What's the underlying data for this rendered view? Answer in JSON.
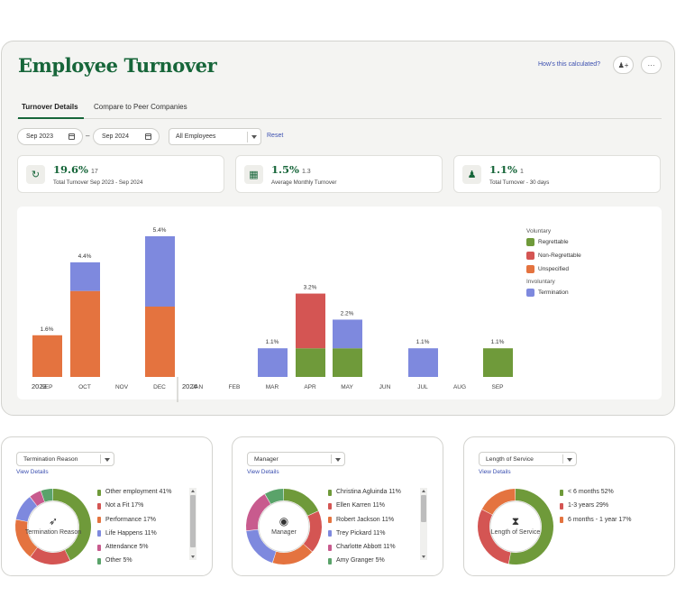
{
  "header": {
    "title": "Employee Turnover",
    "help_link": "How's this calculated?",
    "user_button_icon": "add-user-icon",
    "more_button_icon": "more-icon",
    "more_glyph": "···",
    "user_glyph": "♟+"
  },
  "tabs": [
    {
      "label": "Turnover Details",
      "active": true
    },
    {
      "label": "Compare to Peer Companies",
      "active": false
    }
  ],
  "filters": {
    "start_date": "Sep 2023",
    "end_date": "Sep 2024",
    "separator": "–",
    "employee_filter": "All Employees",
    "reset_label": "Reset"
  },
  "stats": [
    {
      "icon": "refresh-icon",
      "glyph": "↻",
      "value": "19.6%",
      "count": "17",
      "label": "Total Turnover Sep 2023 - Sep 2024"
    },
    {
      "icon": "calendar-icon",
      "glyph": "▦",
      "value": "1.5%",
      "count": "1.3",
      "label": "Average Monthly Turnover"
    },
    {
      "icon": "person-minus-icon",
      "glyph": "♟",
      "value": "1.1%",
      "count": "1",
      "label": "Total Turnover - 30 days"
    }
  ],
  "colors": {
    "regrettable": "#6f9a3a",
    "non_regrettable": "#d45553",
    "unspecified": "#e4733f",
    "termination": "#7e89de",
    "brand": "#17663a"
  },
  "chart_data": {
    "type": "bar",
    "stacked": true,
    "year_labels": [
      "2023",
      "2024"
    ],
    "categories": [
      "SEP",
      "OCT",
      "NOV",
      "DEC",
      "JAN",
      "FEB",
      "MAR",
      "APR",
      "MAY",
      "JUN",
      "JUL",
      "AUG",
      "SEP"
    ],
    "series": [
      {
        "name": "Regrettable",
        "values": [
          0,
          0,
          0,
          0,
          0,
          0,
          0,
          1.1,
          1.1,
          0,
          0,
          0,
          1.1
        ]
      },
      {
        "name": "Non-Regrettable",
        "values": [
          0,
          0,
          0,
          0,
          0,
          0,
          0,
          2.1,
          0,
          0,
          0,
          0,
          0
        ]
      },
      {
        "name": "Unspecified",
        "values": [
          1.6,
          3.3,
          0,
          2.7,
          0,
          0,
          0,
          0,
          0,
          0,
          0,
          0,
          0
        ]
      },
      {
        "name": "Termination",
        "values": [
          0,
          1.1,
          0,
          2.7,
          0,
          0,
          1.1,
          0,
          1.1,
          0,
          1.1,
          0,
          0
        ]
      }
    ],
    "totals": [
      "1.6%",
      "4.4%",
      "",
      "5.4%",
      "",
      "",
      "1.1%",
      "3.2%",
      "2.2%",
      "",
      "1.1%",
      "",
      "1.1%"
    ],
    "ylim": [
      0,
      5.4
    ],
    "legend": {
      "groups": [
        {
          "title": "Voluntary",
          "items": [
            "Regrettable",
            "Non-Regrettable",
            "Unspecified"
          ]
        },
        {
          "title": "Involuntary",
          "items": [
            "Termination"
          ]
        }
      ],
      "position": "right"
    }
  },
  "breakdowns": [
    {
      "select": "Termination Reason",
      "link": "View Details",
      "center_label": "Termination Reason",
      "center_icon": "person-running-icon",
      "center_glyph": "➶",
      "items": [
        {
          "label": "Other employment",
          "pct": "41%",
          "value": 41,
          "color": "#6f9a3a"
        },
        {
          "label": "Not a Fit",
          "pct": "17%",
          "value": 17,
          "color": "#d45553"
        },
        {
          "label": "Performance",
          "pct": "17%",
          "value": 17,
          "color": "#e4733f"
        },
        {
          "label": "Life Happens",
          "pct": "11%",
          "value": 11,
          "color": "#7e89de"
        },
        {
          "label": "Attendance",
          "pct": "5%",
          "value": 5,
          "color": "#c85b8e"
        },
        {
          "label": "Other",
          "pct": "5%",
          "value": 5,
          "color": "#5aa36a"
        }
      ]
    },
    {
      "select": "Manager",
      "link": "View Details",
      "center_label": "Manager",
      "center_icon": "user-circle-icon",
      "center_glyph": "◉",
      "items": [
        {
          "label": "Christina Agluinda",
          "pct": "11%",
          "value": 11,
          "color": "#6f9a3a"
        },
        {
          "label": "Ellen Karren",
          "pct": "11%",
          "value": 11,
          "color": "#d45553"
        },
        {
          "label": "Robert Jackson",
          "pct": "11%",
          "value": 11,
          "color": "#e4733f"
        },
        {
          "label": "Trey Pickard",
          "pct": "11%",
          "value": 11,
          "color": "#7e89de"
        },
        {
          "label": "Charlotte Abbott",
          "pct": "11%",
          "value": 11,
          "color": "#c85b8e"
        },
        {
          "label": "Amy Granger",
          "pct": "5%",
          "value": 5,
          "color": "#5aa36a"
        }
      ]
    },
    {
      "select": "Length of Service",
      "link": "View Details",
      "center_label": "Length of Service",
      "center_icon": "hourglass-icon",
      "center_glyph": "⧗",
      "items": [
        {
          "label": "< 6 months",
          "pct": "52%",
          "value": 52,
          "color": "#6f9a3a"
        },
        {
          "label": "1-3 years",
          "pct": "29%",
          "value": 29,
          "color": "#d45553"
        },
        {
          "label": "6 months - 1 year",
          "pct": "17%",
          "value": 17,
          "color": "#e4733f"
        }
      ]
    }
  ]
}
